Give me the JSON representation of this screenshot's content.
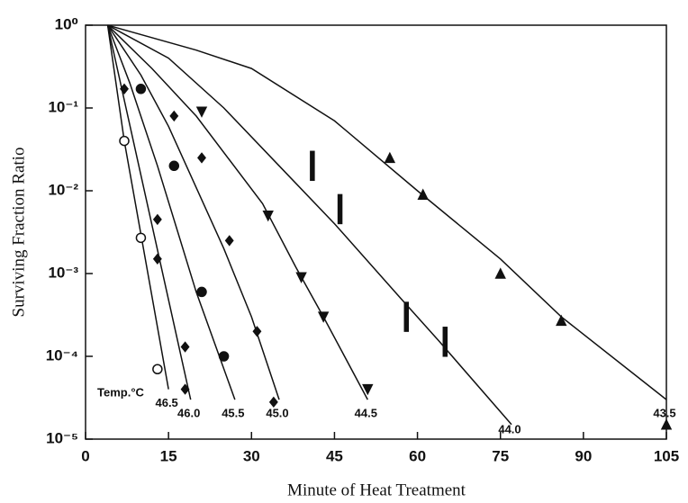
{
  "chart_data": {
    "type": "line",
    "x_label": "Minute of Heat Treatment",
    "y_label": "Surviving Fraction Ratio",
    "annotation": "Temp.°C",
    "log_y": true,
    "grid": false,
    "xlim": [
      0,
      105
    ],
    "xticks": [
      0,
      15,
      30,
      45,
      60,
      75,
      90,
      105
    ],
    "ylim": [
      1e-05,
      1
    ],
    "yticks": [
      {
        "value": 1,
        "label": "10⁰"
      },
      {
        "value": 0.1,
        "label": "10⁻¹"
      },
      {
        "value": 0.01,
        "label": "10⁻²"
      },
      {
        "value": 0.001,
        "label": "10⁻³"
      },
      {
        "value": 0.0001,
        "label": "10⁻⁴"
      },
      {
        "value": 1e-05,
        "label": "10⁻⁵"
      }
    ],
    "series": [
      {
        "name": "46.5",
        "color": "#111111",
        "marker": "open-circle",
        "x": [
          4,
          7,
          10,
          15
        ],
        "values": [
          1,
          0.04,
          0.003,
          4e-05
        ],
        "points": {
          "x": [
            7,
            10,
            13
          ],
          "values": [
            0.04,
            0.0027,
            7e-05
          ]
        }
      },
      {
        "name": "46.0",
        "color": "#111111",
        "marker": "diamond",
        "x": [
          4,
          19
        ],
        "values": [
          1,
          3e-05
        ],
        "points": {
          "x": [
            7,
            13,
            13,
            18,
            18
          ],
          "values": [
            0.17,
            0.0045,
            0.0015,
            0.00013,
            4e-05
          ]
        }
      },
      {
        "name": "45.5",
        "color": "#111111",
        "marker": "circle",
        "x": [
          4,
          8,
          13,
          20,
          27
        ],
        "values": [
          1,
          0.2,
          0.02,
          0.0006,
          3e-05
        ],
        "points": {
          "x": [
            10,
            16,
            21,
            25
          ],
          "values": [
            0.17,
            0.02,
            0.0006,
            0.0001
          ]
        }
      },
      {
        "name": "45.0",
        "color": "#111111",
        "marker": "diamond",
        "x": [
          4,
          10,
          15,
          25,
          30,
          35
        ],
        "values": [
          1,
          0.25,
          0.06,
          0.002,
          0.0003,
          3e-05
        ],
        "points": {
          "x": [
            16,
            21,
            26,
            31,
            34
          ],
          "values": [
            0.08,
            0.025,
            0.0025,
            0.0002,
            2.8e-05
          ]
        }
      },
      {
        "name": "44.5",
        "color": "#111111",
        "marker": "triangle-down",
        "x": [
          4,
          12,
          20,
          32,
          38,
          43,
          51
        ],
        "values": [
          1,
          0.3,
          0.08,
          0.007,
          0.0012,
          0.0003,
          3e-05
        ],
        "points": {
          "x": [
            21,
            33,
            39,
            43,
            51
          ],
          "values": [
            0.09,
            0.005,
            0.0009,
            0.0003,
            4e-05
          ]
        }
      },
      {
        "name": "44.0",
        "color": "#111111",
        "marker": "bar",
        "x": [
          4,
          15,
          25,
          35,
          45,
          57,
          64,
          77
        ],
        "values": [
          1,
          0.4,
          0.1,
          0.02,
          0.004,
          0.0005,
          0.00015,
          1.5e-05
        ],
        "points": {
          "x": [
            41,
            46,
            58,
            65
          ],
          "values": [
            0.02,
            0.006,
            0.0003,
            0.00015
          ]
        }
      },
      {
        "name": "43.5",
        "color": "#111111",
        "marker": "triangle",
        "x": [
          4,
          20,
          30,
          45,
          60,
          75,
          86,
          105
        ],
        "values": [
          1,
          0.5,
          0.3,
          0.07,
          0.01,
          0.0015,
          0.0003,
          3e-05
        ],
        "points": {
          "x": [
            55,
            61,
            75,
            86,
            105
          ],
          "values": [
            0.025,
            0.009,
            0.001,
            0.00027,
            1.5e-05
          ]
        }
      }
    ]
  }
}
